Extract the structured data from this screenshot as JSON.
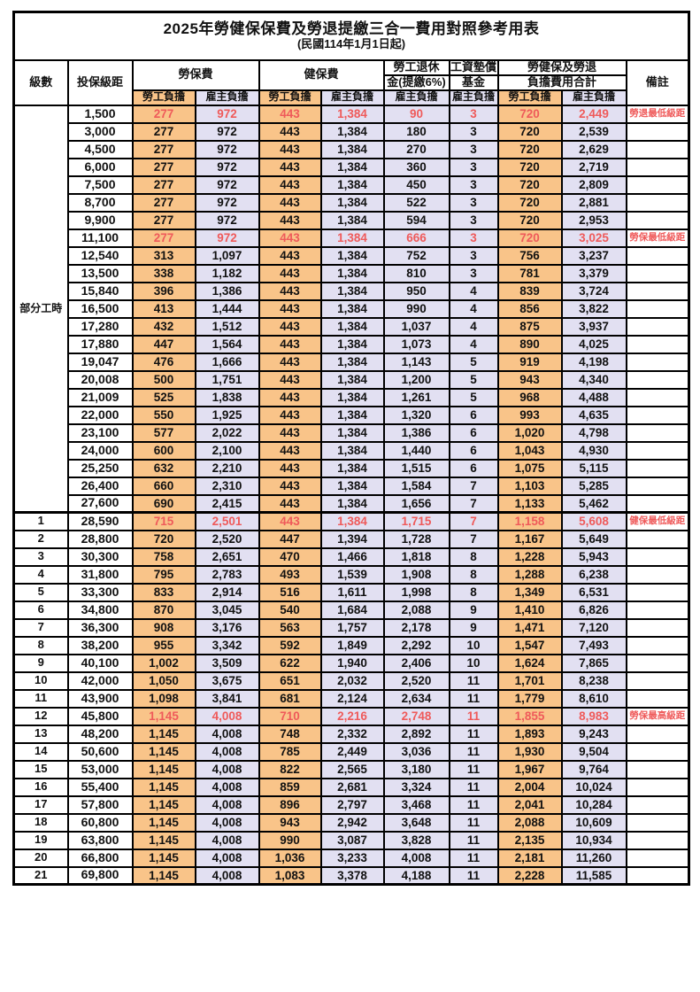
{
  "title": "2025年勞健保保費及勞退提繳三合一費用對照參考用表",
  "subtitle": "(民國114年1月1日起)",
  "colors": {
    "employee_column_bg": "#F9C489",
    "employer_column_bg": "#E2E0F2",
    "highlight_red": "#EF5A5A",
    "border": "#000000"
  },
  "header": {
    "level": "級數",
    "bracket": "投保級距",
    "labor_ins": "勞保費",
    "health_ins": "健保費",
    "pension_line1": "勞工退休",
    "pension_line2": "金(提繳6%)",
    "wage_fund_line1": "工資墊償",
    "wage_fund_line2": "基金",
    "total_line1": "勞健保及勞退",
    "total_line2": "負擔費用合計",
    "remark": "備註",
    "employee": "勞工負擔",
    "employer": "雇主負擔"
  },
  "part_time_label": "部分工時",
  "rows": [
    {
      "level": "",
      "bracket": "1,500",
      "values": [
        "277",
        "972",
        "443",
        "1,384",
        "90",
        "3",
        "720",
        "2,449"
      ],
      "remark": "勞退最低級距",
      "red": true
    },
    {
      "level": "",
      "bracket": "3,000",
      "values": [
        "277",
        "972",
        "443",
        "1,384",
        "180",
        "3",
        "720",
        "2,539"
      ],
      "remark": "",
      "red": false
    },
    {
      "level": "",
      "bracket": "4,500",
      "values": [
        "277",
        "972",
        "443",
        "1,384",
        "270",
        "3",
        "720",
        "2,629"
      ],
      "remark": "",
      "red": false
    },
    {
      "level": "",
      "bracket": "6,000",
      "values": [
        "277",
        "972",
        "443",
        "1,384",
        "360",
        "3",
        "720",
        "2,719"
      ],
      "remark": "",
      "red": false
    },
    {
      "level": "",
      "bracket": "7,500",
      "values": [
        "277",
        "972",
        "443",
        "1,384",
        "450",
        "3",
        "720",
        "2,809"
      ],
      "remark": "",
      "red": false
    },
    {
      "level": "",
      "bracket": "8,700",
      "values": [
        "277",
        "972",
        "443",
        "1,384",
        "522",
        "3",
        "720",
        "2,881"
      ],
      "remark": "",
      "red": false
    },
    {
      "level": "",
      "bracket": "9,900",
      "values": [
        "277",
        "972",
        "443",
        "1,384",
        "594",
        "3",
        "720",
        "2,953"
      ],
      "remark": "",
      "red": false
    },
    {
      "level": "",
      "bracket": "11,100",
      "values": [
        "277",
        "972",
        "443",
        "1,384",
        "666",
        "3",
        "720",
        "3,025"
      ],
      "remark": "勞保最低級距",
      "red": true
    },
    {
      "level": "",
      "bracket": "12,540",
      "values": [
        "313",
        "1,097",
        "443",
        "1,384",
        "752",
        "3",
        "756",
        "3,237"
      ],
      "remark": "",
      "red": false
    },
    {
      "level": "",
      "bracket": "13,500",
      "values": [
        "338",
        "1,182",
        "443",
        "1,384",
        "810",
        "3",
        "781",
        "3,379"
      ],
      "remark": "",
      "red": false
    },
    {
      "level": "",
      "bracket": "15,840",
      "values": [
        "396",
        "1,386",
        "443",
        "1,384",
        "950",
        "4",
        "839",
        "3,724"
      ],
      "remark": "",
      "red": false
    },
    {
      "level": "",
      "bracket": "16,500",
      "values": [
        "413",
        "1,444",
        "443",
        "1,384",
        "990",
        "4",
        "856",
        "3,822"
      ],
      "remark": "",
      "red": false
    },
    {
      "level": "",
      "bracket": "17,280",
      "values": [
        "432",
        "1,512",
        "443",
        "1,384",
        "1,037",
        "4",
        "875",
        "3,937"
      ],
      "remark": "",
      "red": false
    },
    {
      "level": "",
      "bracket": "17,880",
      "values": [
        "447",
        "1,564",
        "443",
        "1,384",
        "1,073",
        "4",
        "890",
        "4,025"
      ],
      "remark": "",
      "red": false
    },
    {
      "level": "",
      "bracket": "19,047",
      "values": [
        "476",
        "1,666",
        "443",
        "1,384",
        "1,143",
        "5",
        "919",
        "4,198"
      ],
      "remark": "",
      "red": false
    },
    {
      "level": "",
      "bracket": "20,008",
      "values": [
        "500",
        "1,751",
        "443",
        "1,384",
        "1,200",
        "5",
        "943",
        "4,340"
      ],
      "remark": "",
      "red": false
    },
    {
      "level": "",
      "bracket": "21,009",
      "values": [
        "525",
        "1,838",
        "443",
        "1,384",
        "1,261",
        "5",
        "968",
        "4,488"
      ],
      "remark": "",
      "red": false
    },
    {
      "level": "",
      "bracket": "22,000",
      "values": [
        "550",
        "1,925",
        "443",
        "1,384",
        "1,320",
        "6",
        "993",
        "4,635"
      ],
      "remark": "",
      "red": false
    },
    {
      "level": "",
      "bracket": "23,100",
      "values": [
        "577",
        "2,022",
        "443",
        "1,384",
        "1,386",
        "6",
        "1,020",
        "4,798"
      ],
      "remark": "",
      "red": false
    },
    {
      "level": "",
      "bracket": "24,000",
      "values": [
        "600",
        "2,100",
        "443",
        "1,384",
        "1,440",
        "6",
        "1,043",
        "4,930"
      ],
      "remark": "",
      "red": false
    },
    {
      "level": "",
      "bracket": "25,250",
      "values": [
        "632",
        "2,210",
        "443",
        "1,384",
        "1,515",
        "6",
        "1,075",
        "5,115"
      ],
      "remark": "",
      "red": false
    },
    {
      "level": "",
      "bracket": "26,400",
      "values": [
        "660",
        "2,310",
        "443",
        "1,384",
        "1,584",
        "7",
        "1,103",
        "5,285"
      ],
      "remark": "",
      "red": false
    },
    {
      "level": "",
      "bracket": "27,600",
      "values": [
        "690",
        "2,415",
        "443",
        "1,384",
        "1,656",
        "7",
        "1,133",
        "5,462"
      ],
      "remark": "",
      "red": false
    },
    {
      "level": "1",
      "bracket": "28,590",
      "values": [
        "715",
        "2,501",
        "443",
        "1,384",
        "1,715",
        "7",
        "1,158",
        "5,608"
      ],
      "remark": "健保最低級距",
      "red": true
    },
    {
      "level": "2",
      "bracket": "28,800",
      "values": [
        "720",
        "2,520",
        "447",
        "1,394",
        "1,728",
        "7",
        "1,167",
        "5,649"
      ],
      "remark": "",
      "red": false
    },
    {
      "level": "3",
      "bracket": "30,300",
      "values": [
        "758",
        "2,651",
        "470",
        "1,466",
        "1,818",
        "8",
        "1,228",
        "5,943"
      ],
      "remark": "",
      "red": false
    },
    {
      "level": "4",
      "bracket": "31,800",
      "values": [
        "795",
        "2,783",
        "493",
        "1,539",
        "1,908",
        "8",
        "1,288",
        "6,238"
      ],
      "remark": "",
      "red": false
    },
    {
      "level": "5",
      "bracket": "33,300",
      "values": [
        "833",
        "2,914",
        "516",
        "1,611",
        "1,998",
        "8",
        "1,349",
        "6,531"
      ],
      "remark": "",
      "red": false
    },
    {
      "level": "6",
      "bracket": "34,800",
      "values": [
        "870",
        "3,045",
        "540",
        "1,684",
        "2,088",
        "9",
        "1,410",
        "6,826"
      ],
      "remark": "",
      "red": false
    },
    {
      "level": "7",
      "bracket": "36,300",
      "values": [
        "908",
        "3,176",
        "563",
        "1,757",
        "2,178",
        "9",
        "1,471",
        "7,120"
      ],
      "remark": "",
      "red": false
    },
    {
      "level": "8",
      "bracket": "38,200",
      "values": [
        "955",
        "3,342",
        "592",
        "1,849",
        "2,292",
        "10",
        "1,547",
        "7,493"
      ],
      "remark": "",
      "red": false
    },
    {
      "level": "9",
      "bracket": "40,100",
      "values": [
        "1,002",
        "3,509",
        "622",
        "1,940",
        "2,406",
        "10",
        "1,624",
        "7,865"
      ],
      "remark": "",
      "red": false
    },
    {
      "level": "10",
      "bracket": "42,000",
      "values": [
        "1,050",
        "3,675",
        "651",
        "2,032",
        "2,520",
        "11",
        "1,701",
        "8,238"
      ],
      "remark": "",
      "red": false
    },
    {
      "level": "11",
      "bracket": "43,900",
      "values": [
        "1,098",
        "3,841",
        "681",
        "2,124",
        "2,634",
        "11",
        "1,779",
        "8,610"
      ],
      "remark": "",
      "red": false
    },
    {
      "level": "12",
      "bracket": "45,800",
      "values": [
        "1,145",
        "4,008",
        "710",
        "2,216",
        "2,748",
        "11",
        "1,855",
        "8,983"
      ],
      "remark": "勞保最高級距",
      "red": true
    },
    {
      "level": "13",
      "bracket": "48,200",
      "values": [
        "1,145",
        "4,008",
        "748",
        "2,332",
        "2,892",
        "11",
        "1,893",
        "9,243"
      ],
      "remark": "",
      "red": false
    },
    {
      "level": "14",
      "bracket": "50,600",
      "values": [
        "1,145",
        "4,008",
        "785",
        "2,449",
        "3,036",
        "11",
        "1,930",
        "9,504"
      ],
      "remark": "",
      "red": false
    },
    {
      "level": "15",
      "bracket": "53,000",
      "values": [
        "1,145",
        "4,008",
        "822",
        "2,565",
        "3,180",
        "11",
        "1,967",
        "9,764"
      ],
      "remark": "",
      "red": false
    },
    {
      "level": "16",
      "bracket": "55,400",
      "values": [
        "1,145",
        "4,008",
        "859",
        "2,681",
        "3,324",
        "11",
        "2,004",
        "10,024"
      ],
      "remark": "",
      "red": false
    },
    {
      "level": "17",
      "bracket": "57,800",
      "values": [
        "1,145",
        "4,008",
        "896",
        "2,797",
        "3,468",
        "11",
        "2,041",
        "10,284"
      ],
      "remark": "",
      "red": false
    },
    {
      "level": "18",
      "bracket": "60,800",
      "values": [
        "1,145",
        "4,008",
        "943",
        "2,942",
        "3,648",
        "11",
        "2,088",
        "10,609"
      ],
      "remark": "",
      "red": false
    },
    {
      "level": "19",
      "bracket": "63,800",
      "values": [
        "1,145",
        "4,008",
        "990",
        "3,087",
        "3,828",
        "11",
        "2,135",
        "10,934"
      ],
      "remark": "",
      "red": false
    },
    {
      "level": "20",
      "bracket": "66,800",
      "values": [
        "1,145",
        "4,008",
        "1,036",
        "3,233",
        "4,008",
        "11",
        "2,181",
        "11,260"
      ],
      "remark": "",
      "red": false
    },
    {
      "level": "21",
      "bracket": "69,800",
      "values": [
        "1,145",
        "4,008",
        "1,083",
        "3,378",
        "4,188",
        "11",
        "2,228",
        "11,585"
      ],
      "remark": "",
      "red": false
    }
  ]
}
